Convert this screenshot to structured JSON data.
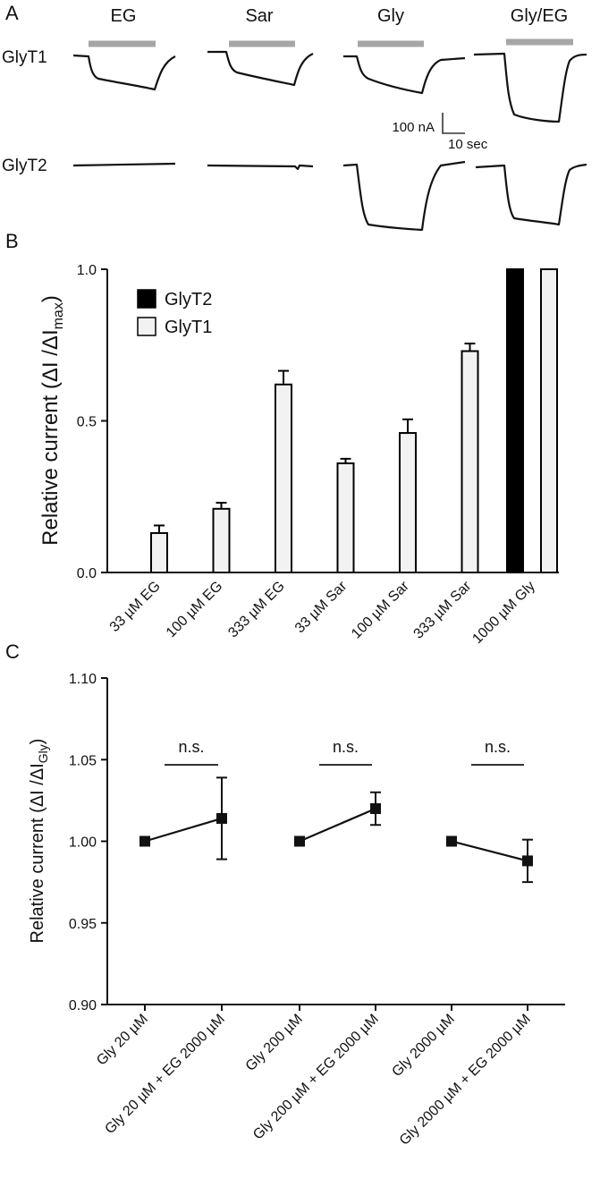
{
  "panels": {
    "a": "A",
    "b": "B",
    "c": "C"
  },
  "panel_a": {
    "columns": [
      "EG",
      "Sar",
      "Gly",
      "Gly/EG"
    ],
    "rows": [
      "GlyT1",
      "GlyT2"
    ],
    "scale_current": "100 nA",
    "scale_time": "10 sec",
    "colors": {
      "bar": "#a6a6a6",
      "trace": "#111111"
    }
  },
  "chart_data": [
    {
      "type": "bar",
      "categories": [
        "33 µM EG",
        "100 µM EG",
        "333 µM EG",
        "33 µM Sar",
        "100 µM Sar",
        "333 µM Sar",
        "1000 µM Gly"
      ],
      "series": [
        {
          "name": "GlyT2",
          "values": [
            0,
            0,
            0,
            0,
            0,
            0,
            1.0
          ],
          "color": "#000000"
        },
        {
          "name": "GlyT1",
          "values": [
            0.13,
            0.21,
            0.62,
            0.36,
            0.46,
            0.73,
            1.0
          ],
          "errors": [
            0.025,
            0.02,
            0.045,
            0.015,
            0.045,
            0.025,
            0
          ],
          "color": "#f2f2f2"
        }
      ],
      "ylabel_main": "Relative current (ΔI /ΔI",
      "ylabel_sub": "max",
      "ylabel_close": ")",
      "ylim": [
        0,
        1.0
      ],
      "yticks": [
        "0.0",
        "0.5",
        "1.0"
      ],
      "legend": [
        "GlyT2",
        "GlyT1"
      ],
      "legend_position": "top-left"
    },
    {
      "type": "scatter",
      "categories": [
        "Gly 20 µM",
        "Gly 20 µM + EG 2000 µM",
        "Gly 200 µM",
        "Gly 200 µM + EG 2000 µM",
        "Gly 2000 µM",
        "Gly 2000 µM + EG 2000 µM"
      ],
      "values": [
        1.0,
        1.014,
        1.0,
        1.02,
        1.0,
        0.988
      ],
      "errors": [
        0,
        0.025,
        0,
        0.01,
        0,
        0.013
      ],
      "pairs": [
        [
          0,
          1
        ],
        [
          2,
          3
        ],
        [
          4,
          5
        ]
      ],
      "annotations": [
        "n.s.",
        "n.s.",
        "n.s."
      ],
      "ylabel_main": "Relative current (ΔI /ΔI",
      "ylabel_sub": "Gly",
      "ylabel_close": ")",
      "ylim": [
        0.9,
        1.1
      ],
      "yticks": [
        "0.90",
        "0.95",
        "1.00",
        "1.05",
        "1.10"
      ]
    }
  ]
}
